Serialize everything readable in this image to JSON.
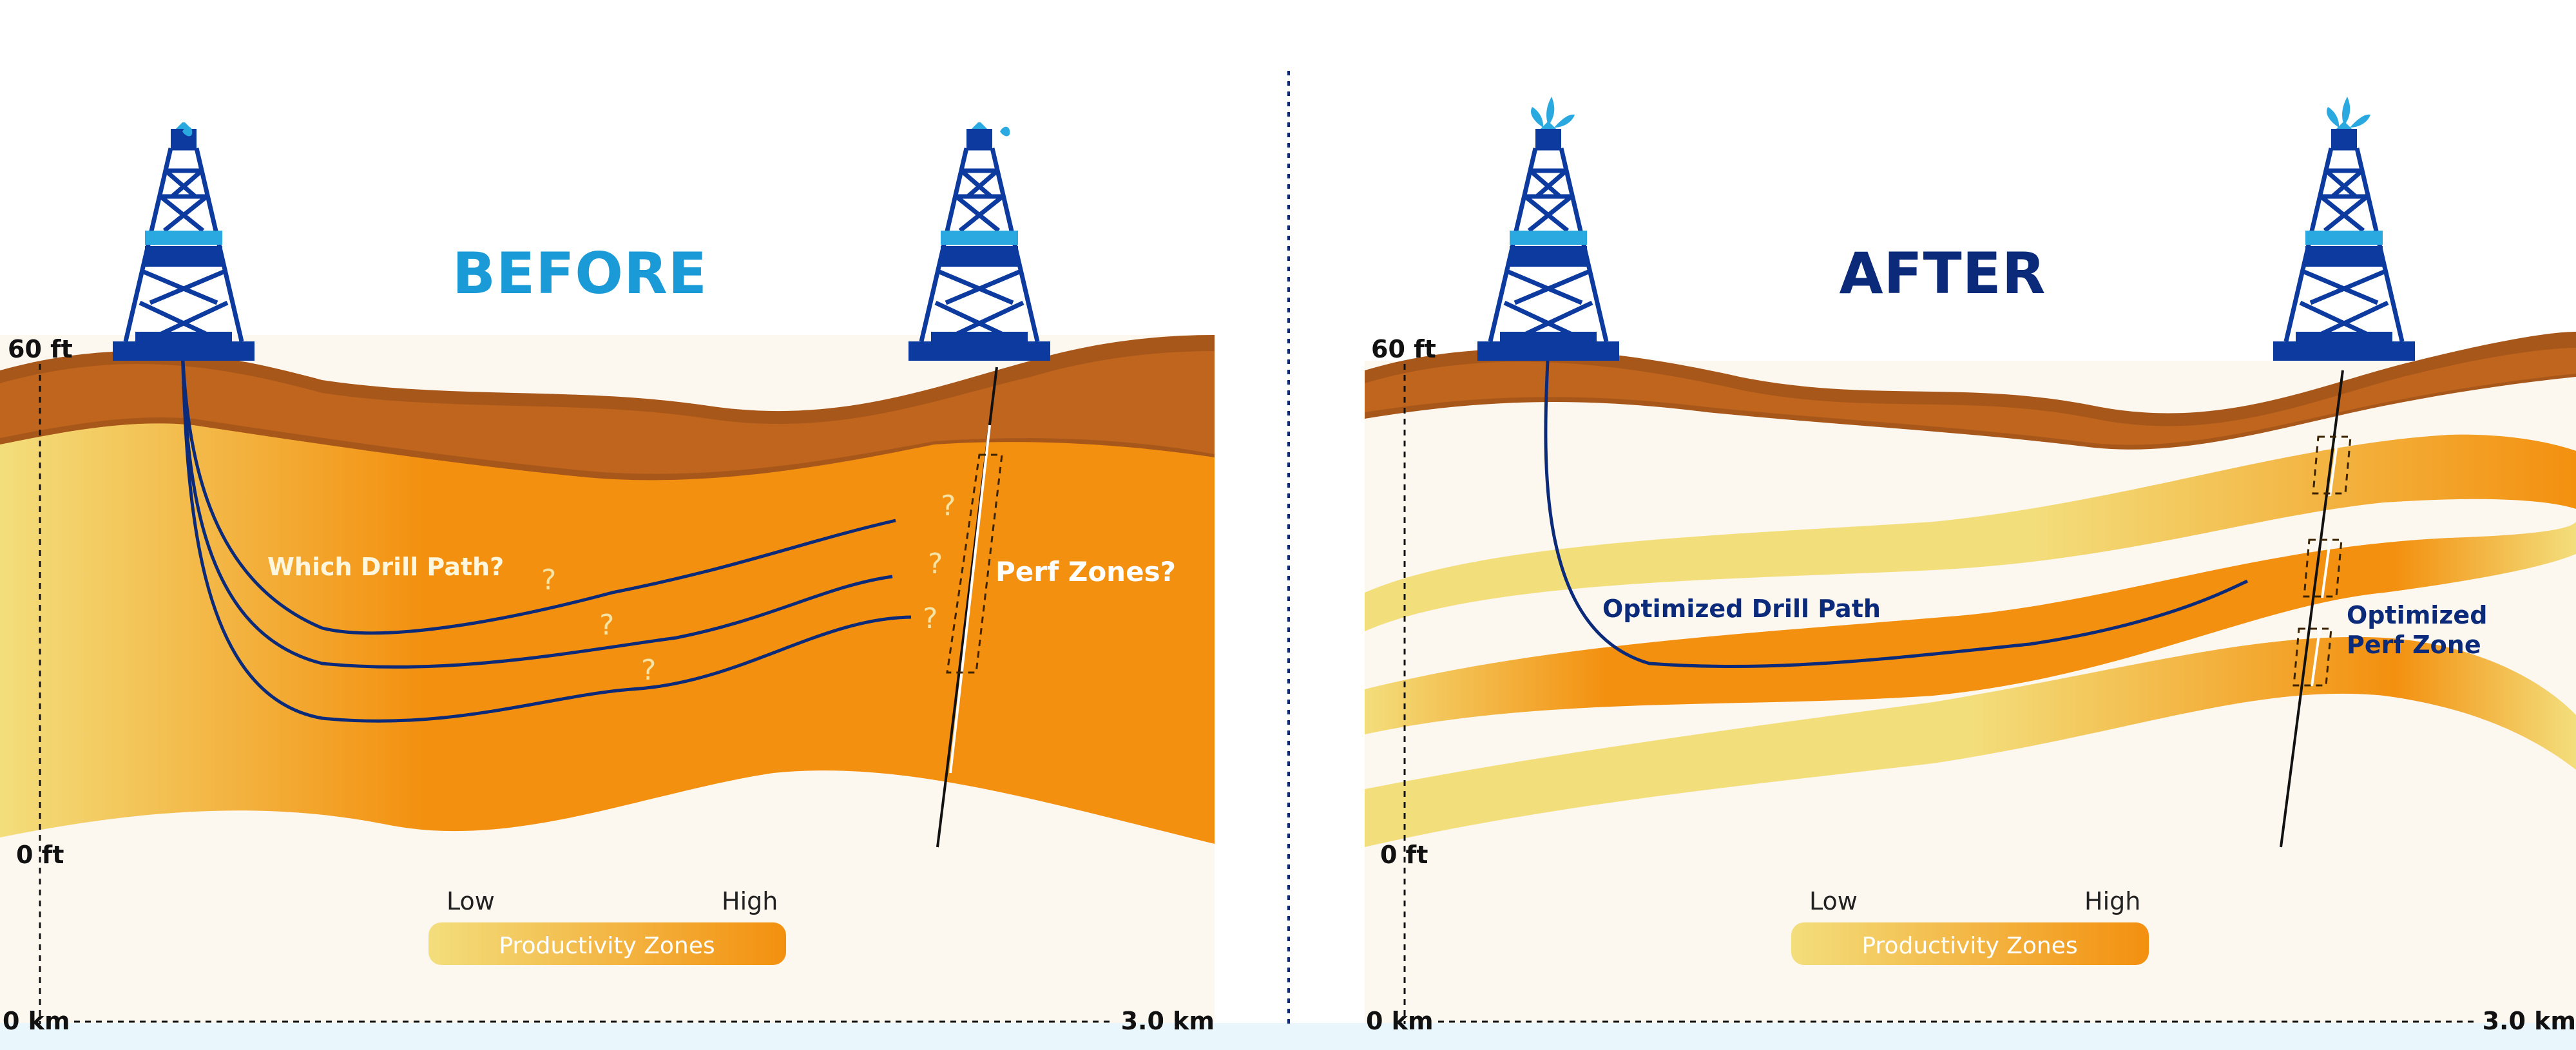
{
  "colors": {
    "before_title": "#1a9ad6",
    "after_title": "#0b2b7a",
    "rig_blue": "#0c3a9e",
    "rig_accent": "#2aa8e0",
    "topsoil_dark": "#a8571b",
    "topsoil": "#c0651e",
    "productive_high": "#f3900f",
    "productive_low": "#f3de7c",
    "ground_pale": "#fcf7ef",
    "drill_path": "#0b2b7a",
    "bottom_strip": "#e9f6fc"
  },
  "before": {
    "title": "BEFORE",
    "depth_top": "60 ft",
    "depth_bottom": "0 ft",
    "drill_path_label": "Which Drill Path?",
    "perf_zone_label": "Perf Zones?",
    "question_mark": "?",
    "legend": {
      "low": "Low",
      "high": "High",
      "bar_label": "Productivity Zones"
    },
    "distance_start": "0 km",
    "distance_end": "3.0 km"
  },
  "after": {
    "title": "AFTER",
    "depth_top": "60 ft",
    "depth_bottom": "0 ft",
    "drill_path_label": "Optimized Drill Path",
    "perf_zone_label_line1": "Optimized",
    "perf_zone_label_line2": "Perf Zone",
    "legend": {
      "low": "Low",
      "high": "High",
      "bar_label": "Productivity Zones"
    },
    "distance_start": "0 km",
    "distance_end": "3.0 km"
  }
}
